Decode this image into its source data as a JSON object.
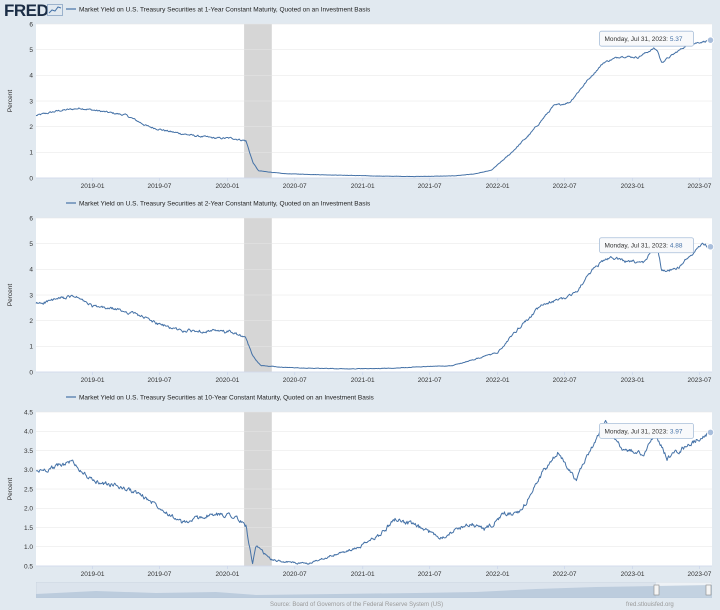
{
  "header": {
    "logo_text": "FRED"
  },
  "footer": {
    "source": "Source: Board of Governors of the Federal Reserve System (US)",
    "site": "fred.stlouisfed.org"
  },
  "colors": {
    "line": "#4572a7",
    "recession": "#d6d6d6",
    "background": "#e1e9f0",
    "plot": "#ffffff"
  },
  "chart_data": [
    {
      "type": "line",
      "title": "Market Yield on U.S. Treasury Securities at 1-Year Constant Maturity, Quoted on an Investment Basis",
      "ylabel": "Percent",
      "ylim": [
        0,
        6
      ],
      "yticks": [
        0,
        1,
        2,
        3,
        4,
        5,
        6
      ],
      "xlim": [
        "2018-08-01",
        "2023-08-04"
      ],
      "xticks": [
        "2019-01",
        "2019-07",
        "2020-01",
        "2020-07",
        "2021-01",
        "2021-07",
        "2022-01",
        "2022-07",
        "2023-01",
        "2023-07"
      ],
      "recession": [
        "2020-02-15",
        "2020-04-30"
      ],
      "tooltip": {
        "date": "Monday, Jul 31, 2023:",
        "value": "5.37"
      },
      "noise": 0.03,
      "series": [
        {
          "name": "1-Year",
          "x": [
            "2018-08-01",
            "2018-10-01",
            "2018-12-01",
            "2019-02-01",
            "2019-04-01",
            "2019-06-01",
            "2019-08-01",
            "2019-10-01",
            "2019-12-01",
            "2020-01-15",
            "2020-02-20",
            "2020-03-10",
            "2020-03-25",
            "2020-06-01",
            "2020-09-01",
            "2020-12-01",
            "2021-03-01",
            "2021-06-01",
            "2021-09-01",
            "2021-11-01",
            "2021-12-15",
            "2022-02-01",
            "2022-04-01",
            "2022-06-01",
            "2022-07-15",
            "2022-09-01",
            "2022-10-15",
            "2022-12-01",
            "2023-01-15",
            "2023-02-28",
            "2023-03-10",
            "2023-03-20",
            "2023-04-15",
            "2023-05-30",
            "2023-07-31"
          ],
          "values": [
            2.43,
            2.62,
            2.72,
            2.58,
            2.45,
            2.0,
            1.8,
            1.65,
            1.55,
            1.55,
            1.45,
            0.6,
            0.28,
            0.17,
            0.13,
            0.1,
            0.07,
            0.06,
            0.08,
            0.16,
            0.3,
            0.9,
            1.75,
            2.8,
            2.95,
            3.8,
            4.5,
            4.75,
            4.7,
            5.05,
            4.95,
            4.5,
            4.75,
            5.2,
            5.37
          ]
        }
      ]
    },
    {
      "type": "line",
      "title": "Market Yield on U.S. Treasury Securities at 2-Year Constant Maturity, Quoted on an Investment Basis",
      "ylabel": "Percent",
      "ylim": [
        0,
        6
      ],
      "yticks": [
        0,
        1,
        2,
        3,
        4,
        5,
        6
      ],
      "xlim": [
        "2018-08-01",
        "2023-08-04"
      ],
      "xticks": [
        "2019-01",
        "2019-07",
        "2020-01",
        "2020-07",
        "2021-01",
        "2021-07",
        "2022-01",
        "2022-07",
        "2023-01",
        "2023-07"
      ],
      "recession": [
        "2020-02-15",
        "2020-04-30"
      ],
      "tooltip": {
        "date": "Monday, Jul 31, 2023:",
        "value": "4.88"
      },
      "noise": 0.05,
      "series": [
        {
          "name": "2-Year",
          "x": [
            "2018-08-01",
            "2018-10-01",
            "2018-11-15",
            "2019-01-01",
            "2019-03-01",
            "2019-05-01",
            "2019-07-01",
            "2019-09-01",
            "2019-11-01",
            "2020-01-15",
            "2020-02-20",
            "2020-03-10",
            "2020-04-01",
            "2020-06-01",
            "2020-09-01",
            "2020-12-01",
            "2021-03-01",
            "2021-06-01",
            "2021-09-01",
            "2021-11-01",
            "2022-01-01",
            "2022-03-01",
            "2022-05-01",
            "2022-07-01",
            "2022-08-01",
            "2022-09-15",
            "2022-11-01",
            "2022-12-15",
            "2023-02-01",
            "2023-03-08",
            "2023-03-20",
            "2023-05-01",
            "2023-07-06",
            "2023-07-31"
          ],
          "values": [
            2.65,
            2.85,
            2.95,
            2.55,
            2.45,
            2.25,
            1.85,
            1.6,
            1.6,
            1.55,
            1.3,
            0.6,
            0.25,
            0.18,
            0.14,
            0.12,
            0.14,
            0.2,
            0.25,
            0.5,
            0.75,
            1.75,
            2.6,
            2.9,
            3.1,
            4.0,
            4.5,
            4.3,
            4.25,
            5.05,
            4.0,
            4.0,
            5.0,
            4.88
          ]
        }
      ]
    },
    {
      "type": "line",
      "title": "Market Yield on U.S. Treasury Securities at 10-Year Constant Maturity, Quoted on an Investment Basis",
      "ylabel": "Percent",
      "ylim": [
        0.5,
        4.5
      ],
      "yticks": [
        0.5,
        1.0,
        1.5,
        2.0,
        2.5,
        3.0,
        3.5,
        4.0,
        4.5
      ],
      "xlim": [
        "2018-08-01",
        "2023-08-04"
      ],
      "xticks": [
        "2019-01",
        "2019-07",
        "2020-01",
        "2020-07",
        "2021-01",
        "2021-07",
        "2022-01",
        "2022-07",
        "2023-01",
        "2023-07"
      ],
      "recession": [
        "2020-02-15",
        "2020-04-30"
      ],
      "tooltip": {
        "date": "Monday, Jul 31, 2023:",
        "value": "3.97"
      },
      "noise": 0.05,
      "series": [
        {
          "name": "10-Year",
          "x": [
            "2018-08-01",
            "2018-09-15",
            "2018-11-05",
            "2019-01-01",
            "2019-03-01",
            "2019-05-01",
            "2019-07-01",
            "2019-09-01",
            "2019-11-01",
            "2020-01-10",
            "2020-02-20",
            "2020-03-09",
            "2020-03-18",
            "2020-05-01",
            "2020-08-04",
            "2020-10-01",
            "2020-12-15",
            "2021-02-15",
            "2021-03-31",
            "2021-06-01",
            "2021-08-01",
            "2021-10-15",
            "2021-12-01",
            "2022-01-20",
            "2022-03-01",
            "2022-05-01",
            "2022-06-14",
            "2022-08-01",
            "2022-10-20",
            "2022-12-01",
            "2023-02-01",
            "2023-03-01",
            "2023-04-05",
            "2023-06-01",
            "2023-07-31"
          ],
          "values": [
            2.95,
            3.05,
            3.22,
            2.7,
            2.6,
            2.4,
            2.05,
            1.6,
            1.8,
            1.85,
            1.55,
            0.55,
            1.0,
            0.65,
            0.55,
            0.75,
            0.95,
            1.3,
            1.74,
            1.5,
            1.25,
            1.6,
            1.45,
            1.85,
            1.85,
            2.9,
            3.45,
            2.75,
            4.25,
            3.55,
            3.4,
            3.95,
            3.3,
            3.65,
            3.97
          ]
        }
      ]
    }
  ]
}
